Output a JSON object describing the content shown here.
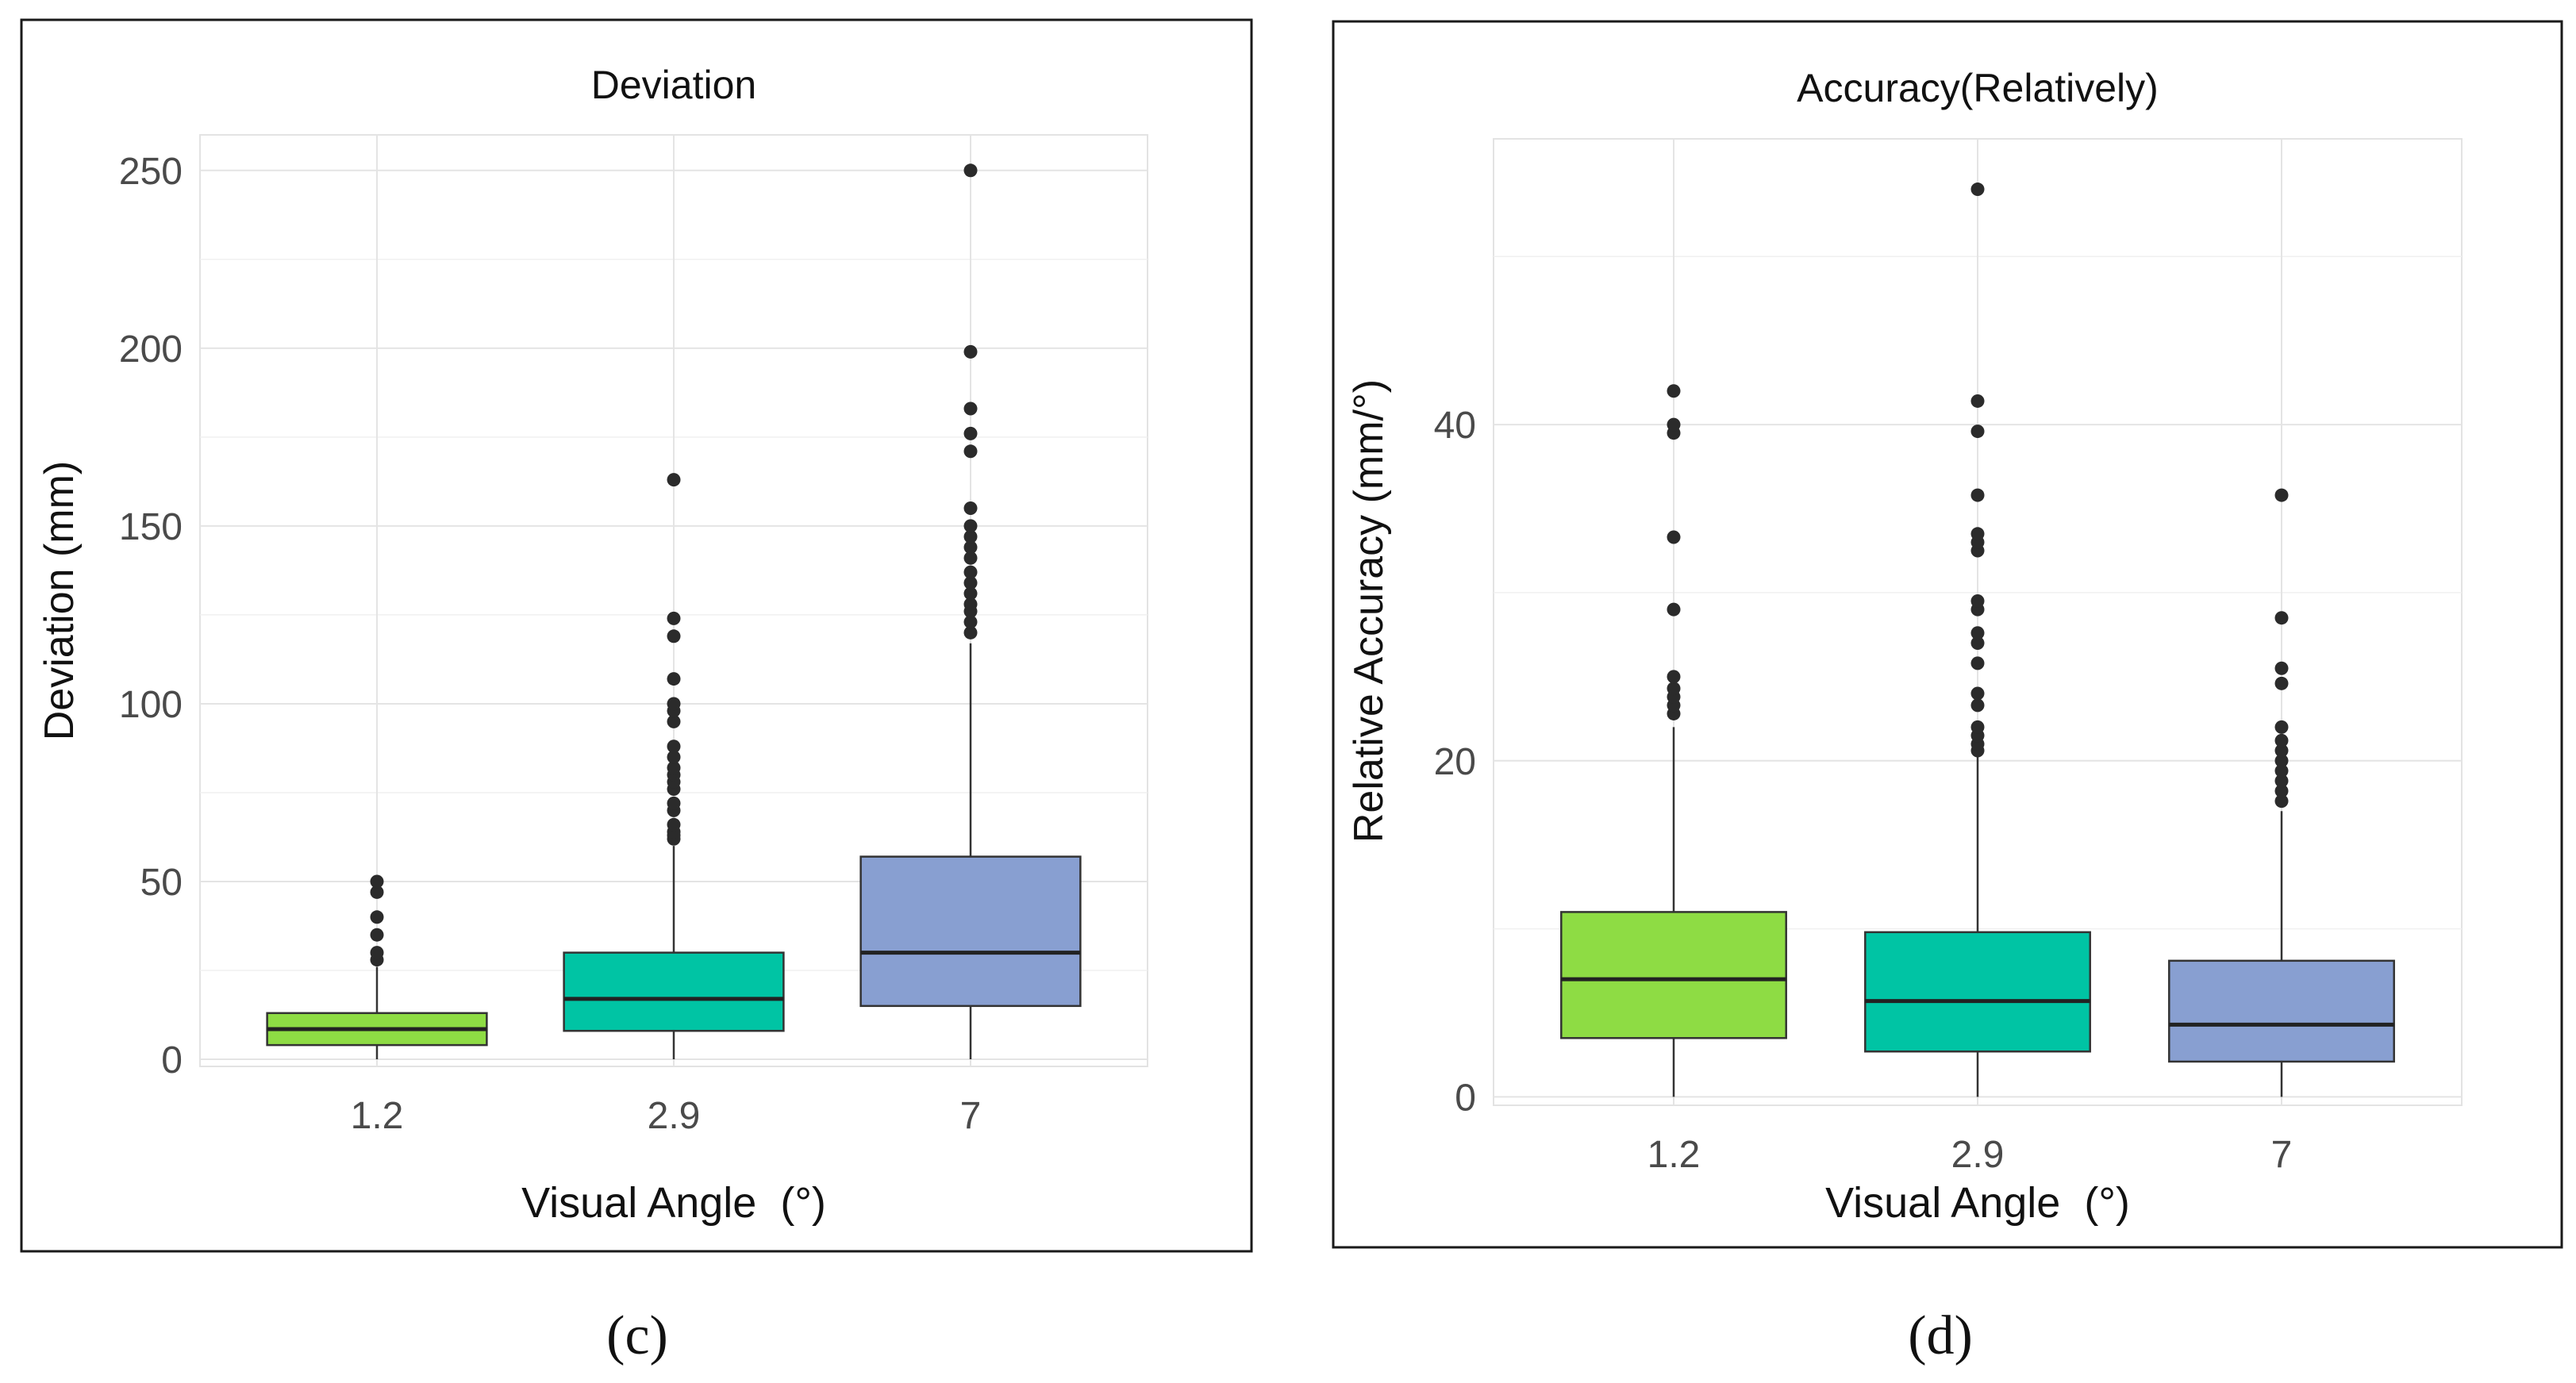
{
  "chart_data": [
    {
      "type": "box",
      "panel_label": "(c)",
      "title": "Deviation",
      "xlabel": "Visual Angle  (°)",
      "ylabel": "Deviation (mm)",
      "categories": [
        "1.2",
        "2.9",
        "7"
      ],
      "ylim": [
        -2,
        260
      ],
      "yticks": [
        0,
        50,
        100,
        150,
        200,
        250
      ],
      "grid": true,
      "colors": [
        "#8edc44",
        "#00c4a4",
        "#889fd1"
      ],
      "boxes": [
        {
          "category": "1.2",
          "whisker_low": 0,
          "q1": 4,
          "median": 8.5,
          "q3": 13,
          "whisker_high": 26,
          "outliers": [
            28,
            30,
            35,
            40,
            47,
            50
          ]
        },
        {
          "category": "2.9",
          "whisker_low": 0,
          "q1": 8,
          "median": 17,
          "q3": 30,
          "whisker_high": 60,
          "outliers": [
            62,
            63,
            64,
            66,
            70,
            72,
            76,
            78,
            80,
            82,
            85,
            88,
            95,
            98,
            100,
            107,
            119,
            124,
            163
          ]
        },
        {
          "category": "7",
          "whisker_low": 0,
          "q1": 15,
          "median": 30,
          "q3": 57,
          "whisker_high": 117,
          "outliers": [
            120,
            123,
            126,
            128,
            131,
            134,
            137,
            141,
            144,
            147,
            150,
            155,
            171,
            176,
            183,
            199,
            250
          ]
        }
      ]
    },
    {
      "type": "box",
      "panel_label": "(d)",
      "title": "Accuracy(Relatively)",
      "xlabel": "Visual Angle  (°)",
      "ylabel": "Relative Accuracy (mm/°)",
      "categories": [
        "1.2",
        "2.9",
        "7"
      ],
      "ylim": [
        -0.5,
        57
      ],
      "yticks": [
        0,
        20,
        40
      ],
      "grid": true,
      "colors": [
        "#8edc44",
        "#00c4a4",
        "#889fd1"
      ],
      "boxes": [
        {
          "category": "1.2",
          "whisker_low": 0,
          "q1": 3.5,
          "median": 7,
          "q3": 11,
          "whisker_high": 22,
          "outliers": [
            22.8,
            23.3,
            23.8,
            24.3,
            25,
            29,
            33.3,
            39.5,
            40,
            42
          ]
        },
        {
          "category": "2.9",
          "whisker_low": 0,
          "q1": 2.7,
          "median": 5.7,
          "q3": 9.8,
          "whisker_high": 20.3,
          "outliers": [
            20.6,
            21,
            21.5,
            22,
            23.3,
            24,
            25.8,
            27,
            27.6,
            29,
            29.5,
            32.5,
            33,
            33.5,
            35.8,
            39.6,
            41.4,
            54
          ]
        },
        {
          "category": "7",
          "whisker_low": 0,
          "q1": 2.1,
          "median": 4.3,
          "q3": 8.1,
          "whisker_high": 17,
          "outliers": [
            17.6,
            18.2,
            18.8,
            19.4,
            20,
            20.6,
            21.2,
            22,
            24.6,
            25.5,
            28.5,
            35.8
          ]
        }
      ]
    }
  ]
}
